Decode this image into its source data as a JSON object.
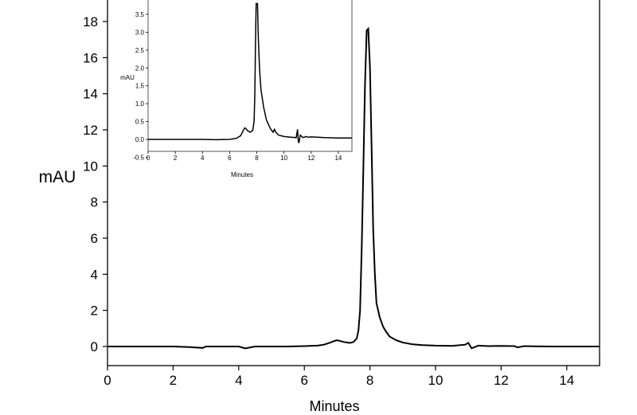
{
  "chart_data": [
    {
      "type": "line",
      "title": "",
      "xlabel": "Minutes",
      "ylabel": "mAU",
      "xlim": [
        0,
        15
      ],
      "ylim": [
        -1,
        19
      ],
      "x_ticks": [
        "0",
        "2",
        "4",
        "6",
        "8",
        "10",
        "12",
        "14"
      ],
      "y_ticks": [
        "0",
        "2",
        "4",
        "6",
        "8",
        "10",
        "12",
        "14",
        "16",
        "18"
      ],
      "grid": false,
      "legend": "none",
      "series": [
        {
          "x": [
            0,
            1,
            2,
            2.5,
            2.9,
            3,
            3.5,
            4,
            4.2,
            4.5,
            5,
            5.5,
            6,
            6.4,
            6.6,
            6.8,
            6.9,
            7.0,
            7.1,
            7.2,
            7.3,
            7.4,
            7.5,
            7.6,
            7.65,
            7.7,
            7.75,
            7.8,
            7.85,
            7.9,
            7.95,
            8.0,
            8.05,
            8.1,
            8.15,
            8.2,
            8.3,
            8.4,
            8.5,
            8.6,
            8.8,
            9.0,
            9.3,
            9.6,
            10,
            10.5,
            10.9,
            11.0,
            11.1,
            11.3,
            11.6,
            12,
            12.4,
            12.5,
            12.7,
            13,
            13.5,
            14,
            14.5,
            15
          ],
          "y": [
            0,
            0,
            0,
            -0.03,
            -0.08,
            0,
            0,
            0,
            -0.1,
            0,
            0,
            0,
            0.02,
            0.05,
            0.1,
            0.22,
            0.3,
            0.35,
            0.3,
            0.25,
            0.22,
            0.2,
            0.25,
            0.45,
            0.9,
            2.0,
            5.5,
            10.0,
            14.5,
            17.5,
            17.6,
            15.5,
            11.0,
            6.5,
            4.0,
            2.4,
            1.6,
            1.1,
            0.8,
            0.55,
            0.35,
            0.22,
            0.12,
            0.08,
            0.05,
            0.03,
            0.1,
            0.2,
            -0.1,
            0.05,
            0.02,
            0.03,
            0.02,
            -0.05,
            0.02,
            0.01,
            0,
            0,
            0,
            0
          ]
        }
      ]
    },
    {
      "type": "line",
      "title": "",
      "xlabel": "Minutes",
      "ylabel": "mAU",
      "xlim": [
        0,
        15
      ],
      "ylim": [
        -0.5,
        3.8
      ],
      "x_ticks": [
        "0",
        "2",
        "4",
        "6",
        "8",
        "10",
        "12",
        "14"
      ],
      "y_ticks": [
        "-0.5",
        "0.0",
        "0.5",
        "1.0",
        "1.5",
        "2.0",
        "2.5",
        "3.0",
        "3.5"
      ],
      "grid": false,
      "legend": "none",
      "series": [
        {
          "x": [
            0,
            2,
            4,
            5,
            6,
            6.5,
            6.8,
            7.0,
            7.1,
            7.2,
            7.3,
            7.5,
            7.7,
            7.8,
            7.85,
            7.9,
            7.95,
            8.0,
            8.05,
            8.1,
            8.2,
            8.3,
            8.5,
            8.7,
            9.0,
            9.2,
            9.3,
            9.4,
            9.6,
            10,
            10.5,
            10.9,
            11.0,
            11.05,
            11.1,
            11.2,
            11.4,
            11.6,
            11.8,
            12,
            12.5,
            13,
            14,
            15
          ],
          "y": [
            0,
            0,
            0,
            -0.01,
            0.0,
            0.03,
            0.1,
            0.25,
            0.32,
            0.3,
            0.25,
            0.2,
            0.25,
            0.5,
            1.2,
            2.6,
            3.8,
            3.8,
            3.8,
            3.0,
            2.0,
            1.4,
            0.9,
            0.55,
            0.3,
            0.2,
            0.28,
            0.2,
            0.12,
            0.08,
            0.06,
            0.05,
            0.28,
            -0.05,
            -0.1,
            0.12,
            0.05,
            0.08,
            0.06,
            0.07,
            0.06,
            0.05,
            0.04,
            0.04
          ]
        }
      ]
    }
  ]
}
